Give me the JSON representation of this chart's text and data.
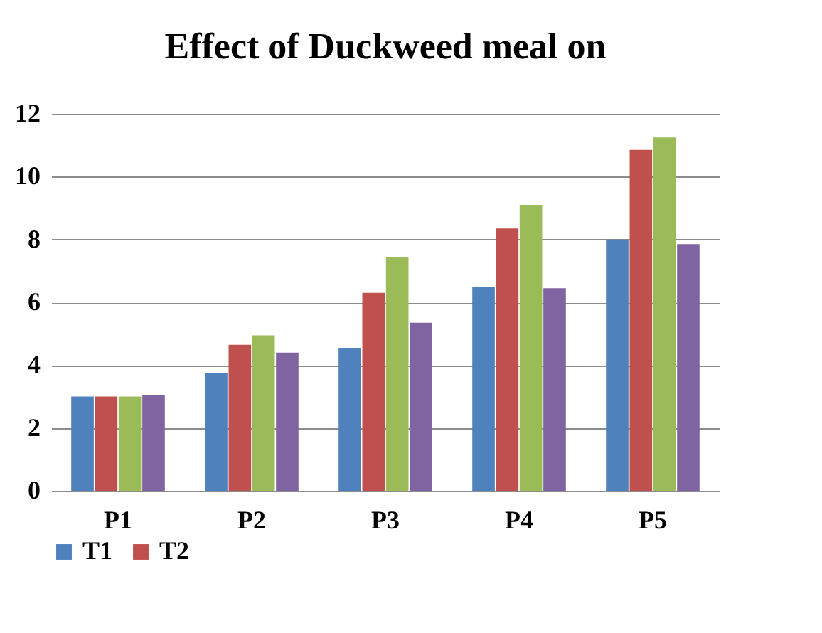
{
  "chart_data": {
    "type": "bar",
    "title": "Effect of Duckweed meal on",
    "categories": [
      "P1",
      "P2",
      "P3",
      "P4",
      "P5"
    ],
    "series": [
      {
        "name": "T1",
        "color": "#4f81bd",
        "values": [
          3.0,
          3.75,
          4.55,
          6.5,
          8.0
        ]
      },
      {
        "name": "T2",
        "color": "#c0504d",
        "values": [
          3.0,
          4.65,
          6.3,
          8.35,
          10.85
        ]
      },
      {
        "color": "#9bbb59",
        "values": [
          3.0,
          4.95,
          7.45,
          9.1,
          11.25
        ]
      },
      {
        "color": "#8064a2",
        "values": [
          3.05,
          4.4,
          5.35,
          6.45,
          7.85
        ]
      }
    ],
    "ylim": [
      0,
      12
    ],
    "yticks": [
      0,
      2,
      4,
      6,
      8,
      10,
      12
    ],
    "grid": "y",
    "legend": "bottom"
  }
}
